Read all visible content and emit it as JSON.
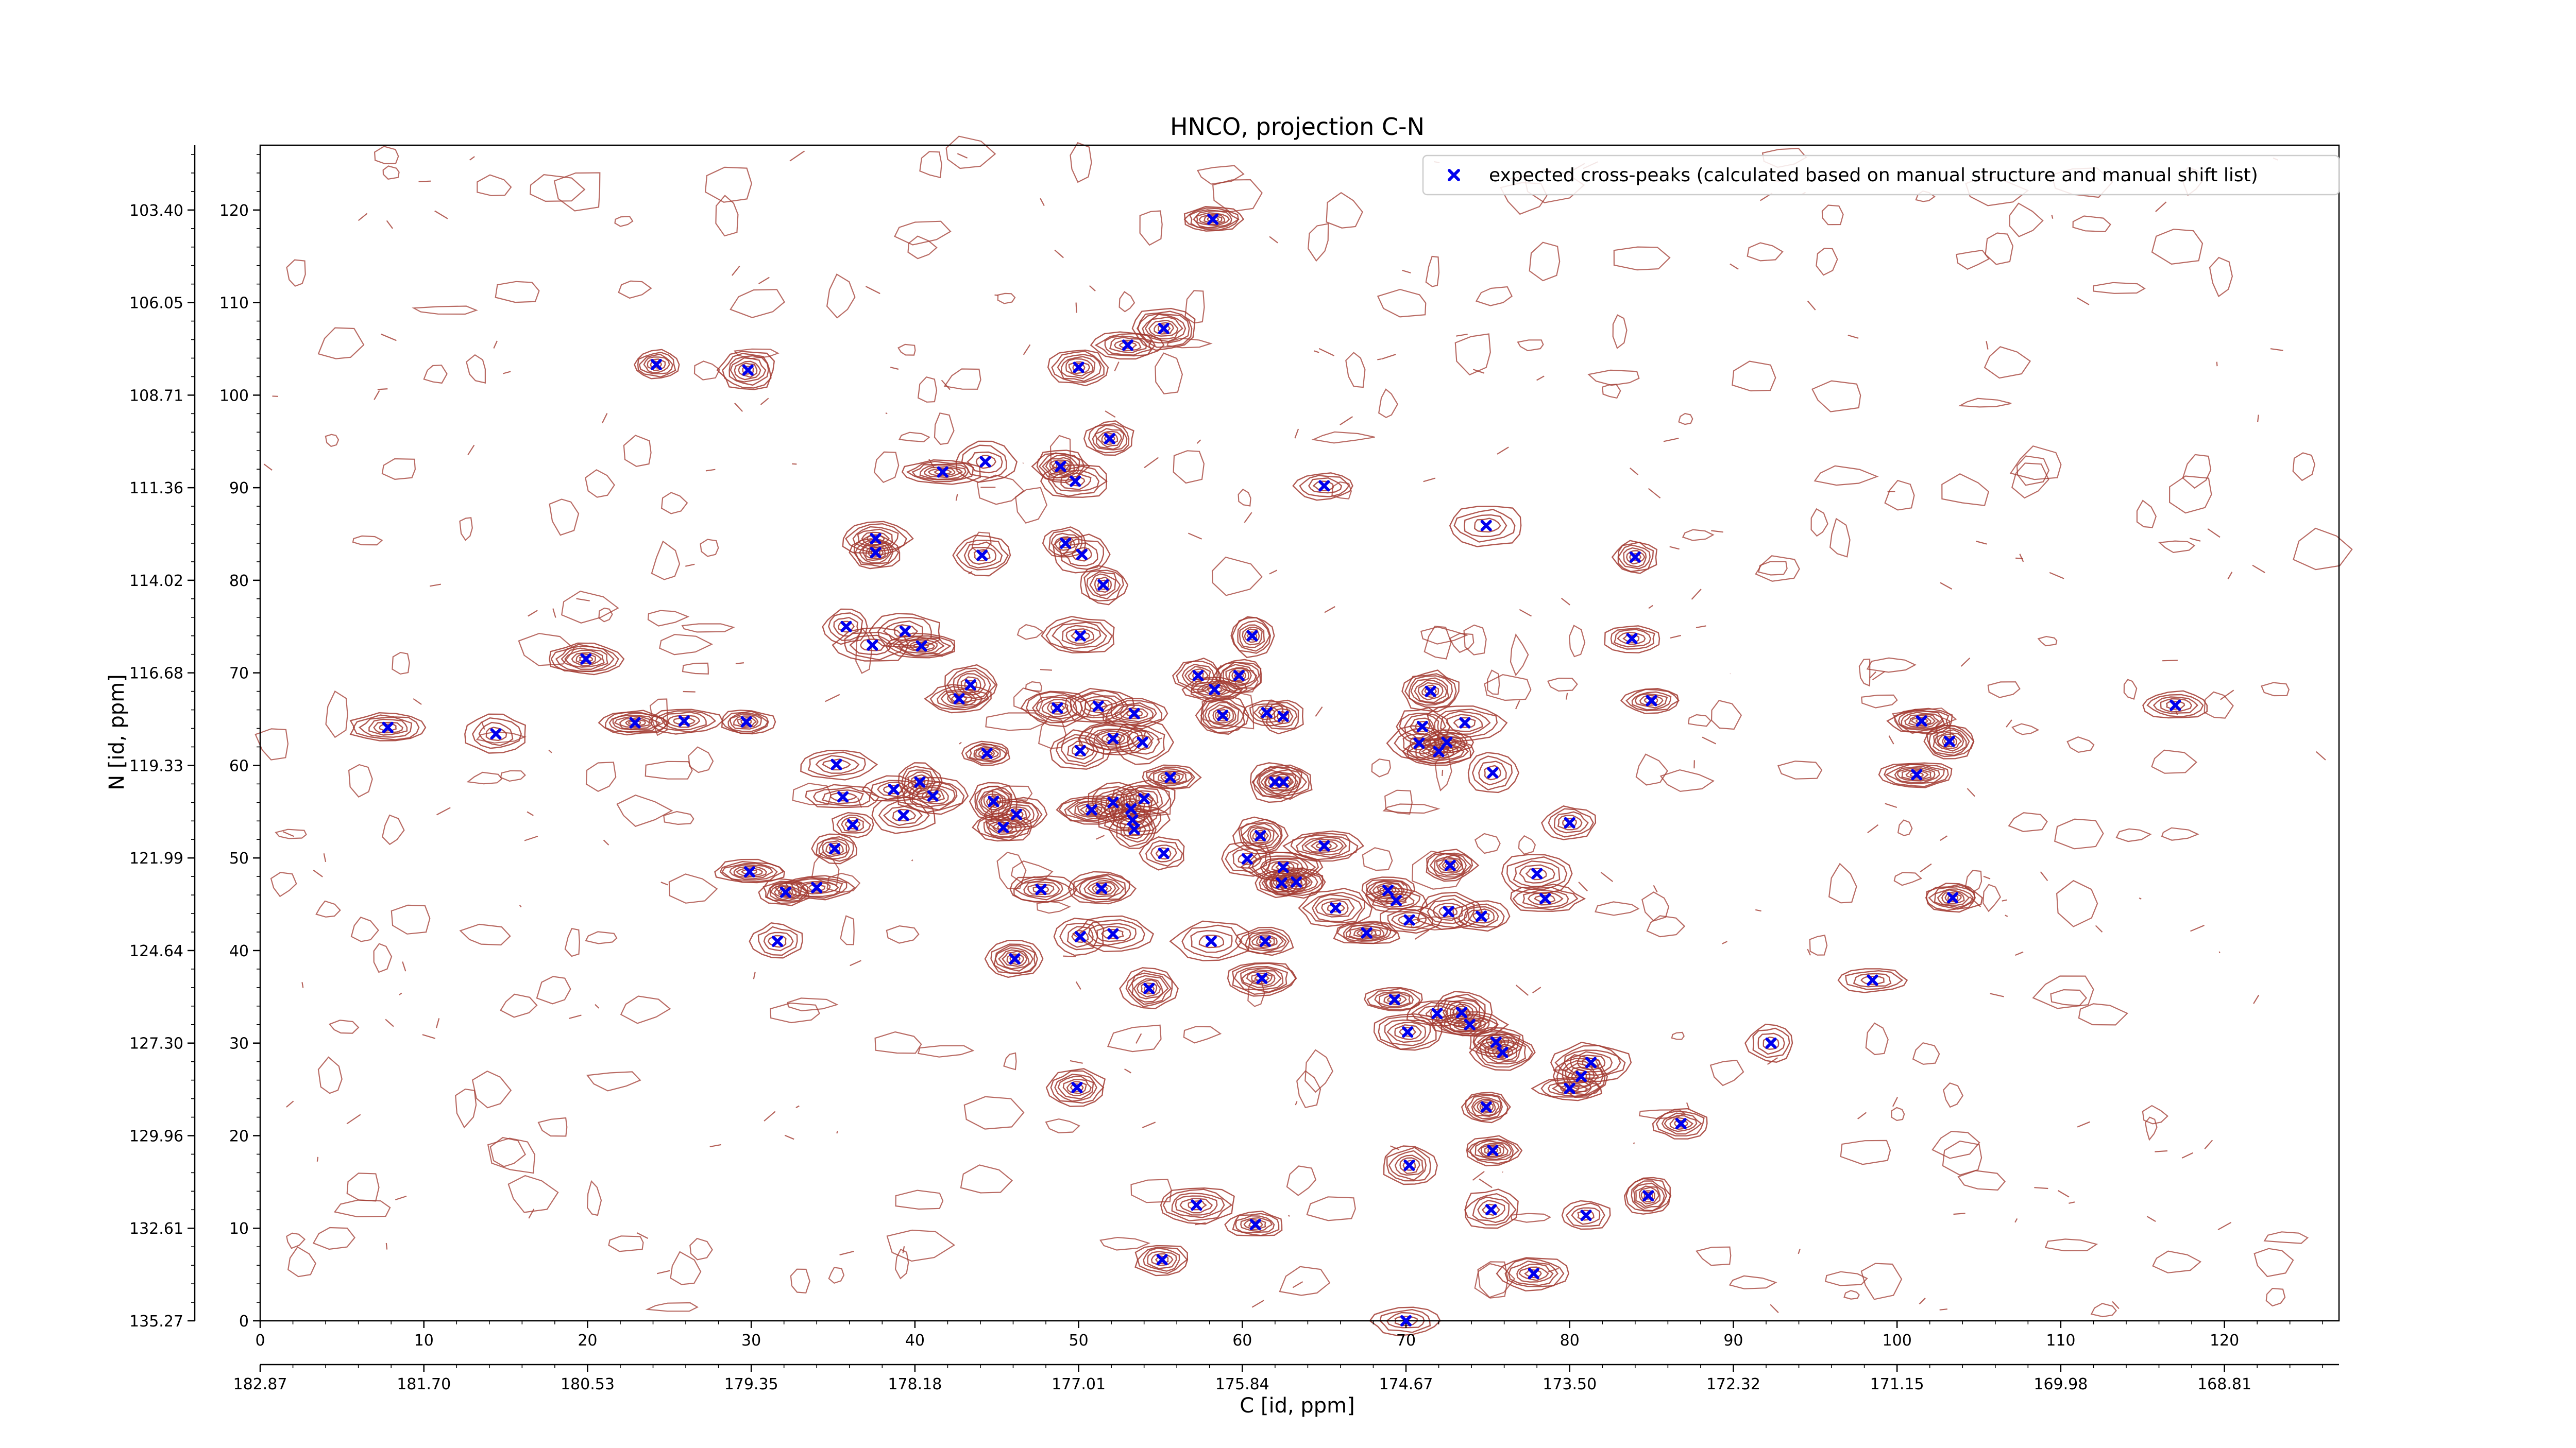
{
  "chart_data": {
    "type": "scatter",
    "title": "HNCO, projection C-N",
    "xlabel": "C [id, ppm]",
    "ylabel": "N [id, ppm]",
    "grid": false,
    "legend_position": "top-right",
    "x_index_ticks": [
      "0",
      "10",
      "20",
      "30",
      "40",
      "50",
      "60",
      "70",
      "80",
      "90",
      "100",
      "110",
      "120"
    ],
    "x_ppm_ticks": [
      "182.87",
      "181.70",
      "180.53",
      "179.35",
      "178.18",
      "177.01",
      "175.84",
      "174.67",
      "173.50",
      "172.32",
      "171.15",
      "169.98",
      "168.81"
    ],
    "y_index_ticks": [
      "0",
      "10",
      "20",
      "30",
      "40",
      "50",
      "60",
      "70",
      "80",
      "90",
      "100",
      "110",
      "120"
    ],
    "y_ppm_ticks": [
      "135.27",
      "132.61",
      "129.96",
      "127.30",
      "124.64",
      "121.99",
      "119.33",
      "116.68",
      "114.02",
      "111.36",
      "108.71",
      "106.05",
      "103.40"
    ],
    "xlim": [
      0,
      127
    ],
    "ylim": [
      0,
      127
    ],
    "series": [
      {
        "name": "expected cross-peaks (calculated based on manual structure and manual shift list)",
        "color": "#0000ee",
        "marker": "X",
        "points": [
          [
            58.2,
            119
          ],
          [
            55.2,
            107.2
          ],
          [
            53,
            105.4
          ],
          [
            50,
            103
          ],
          [
            24.2,
            103.3
          ],
          [
            29.8,
            102.7
          ],
          [
            51.9,
            95.3
          ],
          [
            65,
            90.2
          ],
          [
            41.7,
            91.7
          ],
          [
            44.3,
            92.8
          ],
          [
            48.9,
            92.3
          ],
          [
            49.8,
            90.7
          ],
          [
            74.9,
            85.9
          ],
          [
            84,
            82.5
          ],
          [
            37.6,
            84.5
          ],
          [
            37.6,
            83
          ],
          [
            44.1,
            82.7
          ],
          [
            49.2,
            84
          ],
          [
            50.2,
            82.8
          ],
          [
            51.5,
            79.5
          ],
          [
            35.8,
            75
          ],
          [
            39.4,
            74.5
          ],
          [
            37.4,
            73
          ],
          [
            40.4,
            72.9
          ],
          [
            50.1,
            74
          ],
          [
            60.6,
            74
          ],
          [
            83.8,
            73.7
          ],
          [
            19.9,
            71.5
          ],
          [
            85,
            67
          ],
          [
            117,
            66.5
          ],
          [
            57.3,
            69.7
          ],
          [
            59.8,
            69.7
          ],
          [
            43.4,
            68.7
          ],
          [
            58.3,
            68.2
          ],
          [
            42.7,
            67.2
          ],
          [
            48.7,
            66.2
          ],
          [
            51.2,
            66.4
          ],
          [
            53.4,
            65.6
          ],
          [
            58.8,
            65.4
          ],
          [
            61.5,
            65.7
          ],
          [
            62.5,
            65.3
          ],
          [
            71.5,
            68
          ],
          [
            7.8,
            64.1
          ],
          [
            14.4,
            63.4
          ],
          [
            22.9,
            64.6
          ],
          [
            25.9,
            64.8
          ],
          [
            29.7,
            64.7
          ],
          [
            71,
            64.2
          ],
          [
            73.6,
            64.6
          ],
          [
            70.8,
            62.4
          ],
          [
            72,
            61.5
          ],
          [
            72.5,
            62.5
          ],
          [
            101.5,
            64.8
          ],
          [
            103.2,
            62.6
          ],
          [
            44.4,
            61.3
          ],
          [
            53.9,
            62.5
          ],
          [
            50.1,
            61.6
          ],
          [
            35.2,
            60.1
          ],
          [
            52.1,
            62.9
          ],
          [
            55.6,
            58.7
          ],
          [
            62,
            58.2
          ],
          [
            62.5,
            58.2
          ],
          [
            75.3,
            59.2
          ],
          [
            101.2,
            59
          ],
          [
            38.7,
            57.4
          ],
          [
            40.3,
            58.2
          ],
          [
            41.1,
            56.7
          ],
          [
            44.8,
            56.1
          ],
          [
            35.6,
            56.6
          ],
          [
            46.2,
            54.7
          ],
          [
            52.1,
            56
          ],
          [
            53.2,
            55.3
          ],
          [
            54,
            56.4
          ],
          [
            50.8,
            55.2
          ],
          [
            39.3,
            54.6
          ],
          [
            53.3,
            54.1
          ],
          [
            45.4,
            53.3
          ],
          [
            53.4,
            53.1
          ],
          [
            80,
            53.8
          ],
          [
            36.2,
            53.6
          ],
          [
            61.1,
            52.4
          ],
          [
            35.1,
            51
          ],
          [
            55.2,
            50.5
          ],
          [
            60.3,
            49.9
          ],
          [
            65,
            51.3
          ],
          [
            29.9,
            48.5
          ],
          [
            62.5,
            49
          ],
          [
            72.7,
            49.2
          ],
          [
            78,
            48.3
          ],
          [
            34,
            46.8
          ],
          [
            32.1,
            46.3
          ],
          [
            47.7,
            46.6
          ],
          [
            51.4,
            46.7
          ],
          [
            62.4,
            47.3
          ],
          [
            63.3,
            47.4
          ],
          [
            68.9,
            46.5
          ],
          [
            69.4,
            45.4
          ],
          [
            78.5,
            45.6
          ],
          [
            103.4,
            45.7
          ],
          [
            65.7,
            44.6
          ],
          [
            72.6,
            44.2
          ],
          [
            74.6,
            43.7
          ],
          [
            70.2,
            43.3
          ],
          [
            31.6,
            41
          ],
          [
            50.1,
            41.5
          ],
          [
            52.1,
            41.8
          ],
          [
            58.1,
            41
          ],
          [
            61.4,
            41
          ],
          [
            67.6,
            41.9
          ],
          [
            46.1,
            39.1
          ],
          [
            54.3,
            35.9
          ],
          [
            61.2,
            37
          ],
          [
            98.5,
            36.8
          ],
          [
            69.3,
            34.7
          ],
          [
            71.9,
            33.2
          ],
          [
            73.4,
            33.3
          ],
          [
            73.9,
            32
          ],
          [
            70.1,
            31.2
          ],
          [
            75.5,
            30.1
          ],
          [
            75.9,
            29
          ],
          [
            92.3,
            30
          ],
          [
            81.3,
            27.9
          ],
          [
            80.7,
            26.4
          ],
          [
            80,
            25.1
          ],
          [
            49.9,
            25.2
          ],
          [
            74.9,
            23.1
          ],
          [
            86.8,
            21.3
          ],
          [
            75.3,
            18.4
          ],
          [
            70.2,
            16.8
          ],
          [
            84.8,
            13.5
          ],
          [
            57.2,
            12.5
          ],
          [
            60.8,
            10.4
          ],
          [
            75.2,
            12
          ],
          [
            81,
            11.4
          ],
          [
            55.1,
            6.6
          ],
          [
            77.8,
            5.1
          ],
          [
            70,
            0
          ]
        ]
      }
    ]
  }
}
